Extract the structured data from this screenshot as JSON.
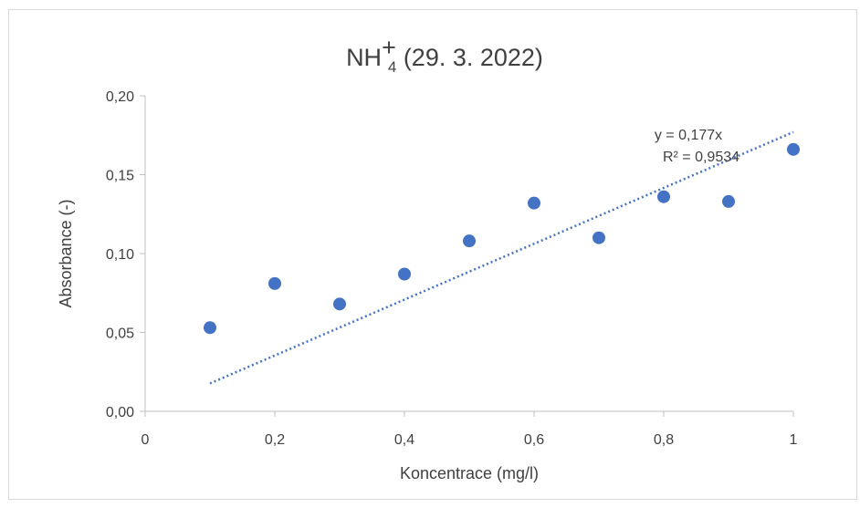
{
  "chart_data": {
    "type": "scatter",
    "title": {
      "base": "NH",
      "subscript": "4",
      "superscript": "+",
      "rest": " (29. 3. 2022)"
    },
    "xlabel": "Koncentrace (mg/l)",
    "ylabel": "Absorbance (-)",
    "xlim": [
      0,
      1
    ],
    "ylim": [
      0,
      0.2
    ],
    "x_ticks": [
      0,
      0.2,
      0.4,
      0.6,
      0.8,
      1
    ],
    "x_tick_labels": [
      "0",
      "0,2",
      "0,4",
      "0,6",
      "0,8",
      "1"
    ],
    "y_ticks": [
      0,
      0.05,
      0.1,
      0.15,
      0.2
    ],
    "y_tick_labels": [
      "0,00",
      "0,05",
      "0,10",
      "0,15",
      "0,20"
    ],
    "grid": false,
    "legend": "none",
    "series": [
      {
        "x": [
          0.1,
          0.2,
          0.3,
          0.4,
          0.5,
          0.6,
          0.7,
          0.8,
          0.9,
          1.0
        ],
        "y": [
          0.053,
          0.081,
          0.068,
          0.087,
          0.108,
          0.132,
          0.11,
          0.136,
          0.133,
          0.166
        ],
        "color": "#4472c4"
      }
    ],
    "trendline": {
      "type": "linear",
      "slope": 0.177,
      "x_range": [
        0.1,
        1.0
      ],
      "color": "#4472c4",
      "style": "dotted",
      "equation_label": "y = 0,177x",
      "r2_label": "R² = 0,9534"
    }
  }
}
